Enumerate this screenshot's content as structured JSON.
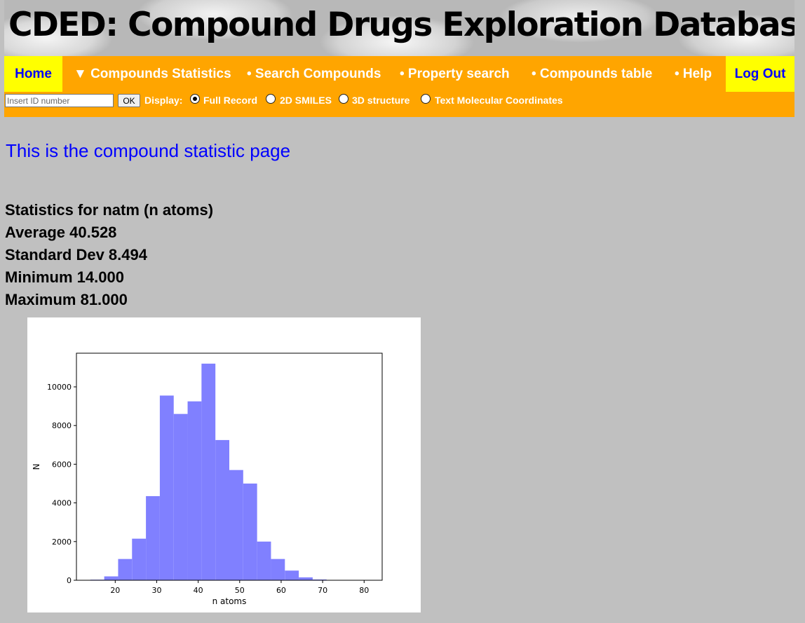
{
  "header": {
    "title": "CDED: Compound Drugs Exploration Database"
  },
  "nav": {
    "home": "Home",
    "items": [
      "▼ Compounds Statistics",
      "• Search Compounds",
      "• Property search",
      "• Compounds table",
      "• Help"
    ],
    "logout": "Log Out"
  },
  "idbar": {
    "placeholder": "Insert ID number",
    "ok": "OK",
    "display_label": "Display:",
    "options": [
      "Full Record",
      "2D SMILES",
      "3D structure",
      "Text Molecular Coordinates"
    ],
    "selected": "Full Record"
  },
  "main": {
    "heading": "This is the compound statistic page",
    "stats": [
      "Statistics for natm (n atoms)",
      "Average 40.528",
      "Standard Dev 8.494",
      "Minimum 14.000",
      "Maximum 81.000"
    ]
  },
  "chart_data": {
    "type": "bar",
    "title": "",
    "xlabel": "n atoms",
    "ylabel": "N",
    "xlim": [
      10.65,
      84.35
    ],
    "ylim": [
      0,
      11740
    ],
    "xticks": [
      20,
      30,
      40,
      50,
      60,
      70,
      80
    ],
    "yticks": [
      0,
      2000,
      4000,
      6000,
      8000,
      10000
    ],
    "bin_width": 3.35,
    "bin_starts": [
      14,
      17.35,
      20.7,
      24.05,
      27.4,
      30.75,
      34.1,
      37.45,
      40.8,
      44.15,
      47.5,
      50.85,
      54.2,
      57.55,
      60.9,
      64.25,
      67.6,
      70.95,
      74.3,
      77.65
    ],
    "values": [
      30,
      200,
      1100,
      2150,
      4350,
      9550,
      8600,
      9250,
      11200,
      7250,
      5700,
      5000,
      2000,
      1100,
      500,
      150,
      40,
      15,
      5,
      5
    ],
    "bar_color": "#8080ff",
    "grid": false
  }
}
